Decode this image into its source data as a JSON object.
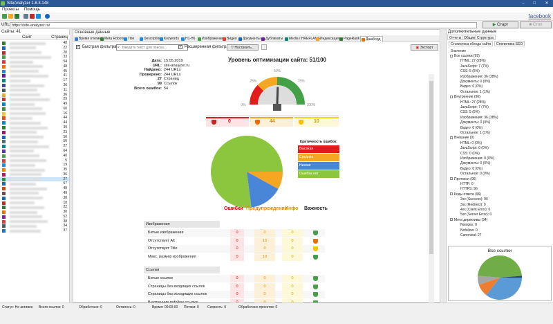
{
  "window": {
    "title": "SiteAnalyzer 1.8.3.148",
    "minimize": "–",
    "maximize": "□",
    "close": "✕"
  },
  "menu": {
    "items": [
      "Проекты",
      "Помощь"
    ]
  },
  "toolbar": {
    "facebook_link": "facebook"
  },
  "url_bar": {
    "label": "URL:",
    "value": "https://site-analyzer.ru/",
    "start_label": "Старт",
    "stop_label": "Стоп"
  },
  "sites_panel": {
    "title": "Сайты: 41",
    "col_site": "Сайт",
    "col_pages": "Страниц",
    "rows": [
      {
        "color": "#2e7d32",
        "pages": "48"
      },
      {
        "color": "#1565c0",
        "pages": "22"
      },
      {
        "color": "#c62828",
        "pages": "20"
      },
      {
        "color": "#43a047",
        "pages": "33"
      },
      {
        "color": "#e53935",
        "pages": "54"
      },
      {
        "color": "#ef6c00",
        "pages": "48"
      },
      {
        "color": "#1e88e5",
        "pages": "45"
      },
      {
        "color": "#6a1b9a",
        "pages": "41"
      },
      {
        "color": "#00897b",
        "pages": "17"
      },
      {
        "color": "#3949ab",
        "pages": "36"
      },
      {
        "color": "#455a64",
        "pages": "11"
      },
      {
        "color": "#f9a825",
        "pages": "36"
      },
      {
        "color": "#d32f2f",
        "pages": "29"
      },
      {
        "color": "#1976d2",
        "pages": "49"
      },
      {
        "color": "#388e3c",
        "pages": "60"
      },
      {
        "color": "#fbc02d",
        "pages": "16"
      },
      {
        "color": "#e64a19",
        "pages": "44"
      },
      {
        "color": "#0288d1",
        "pages": "44"
      },
      {
        "color": "#2e7d32",
        "pages": "39"
      },
      {
        "color": "#ad1457",
        "pages": "23"
      },
      {
        "color": "#1565c0",
        "pages": "50"
      },
      {
        "color": "#546e7a",
        "pages": "50"
      },
      {
        "color": "#00838f",
        "pages": "27"
      },
      {
        "color": "#5e35b1",
        "pages": "64"
      },
      {
        "color": "#43a047",
        "pages": "40"
      },
      {
        "color": "#e53935",
        "pages": "5"
      },
      {
        "color": "#1e88e5",
        "pages": "19"
      },
      {
        "color": "#f57c00",
        "pages": "35"
      },
      {
        "color": "#c2185b",
        "pages": "36"
      },
      {
        "color": "#388e3c",
        "pages": "27"
      },
      {
        "color": "#0277bd",
        "pages": "57"
      },
      {
        "color": "#d84315",
        "pages": "48"
      },
      {
        "color": "#6d4c41",
        "pages": "49"
      },
      {
        "color": "#1565c0",
        "pages": "38"
      },
      {
        "color": "#c62828",
        "pages": "18"
      },
      {
        "color": "#2e7d32",
        "pages": "22"
      },
      {
        "color": "#ef6c00",
        "pages": "30"
      },
      {
        "color": "#7b1fa2",
        "pages": "52"
      },
      {
        "color": "#e53935",
        "pages": "38"
      },
      {
        "color": "#455a64",
        "pages": "34"
      },
      {
        "color": "#1976d2",
        "pages": "37"
      }
    ],
    "selected_index": 29
  },
  "main": {
    "title": "Основные данные",
    "tabs": [
      "Время отклика",
      "Meta Robots",
      "Title",
      "Description",
      "Keywords",
      "H1-H6",
      "Изображения",
      "Видео",
      "Документы",
      "Дубликаты",
      "Media / HREFLANG",
      "Индексация",
      "PageRank",
      "Дашборд"
    ],
    "tab_colors": [
      "#3a7bd5",
      "#2e7d32",
      "#1e88e5",
      "#1e88e5",
      "#1e88e5",
      "#1e88e5",
      "#43a047",
      "#e53935",
      "#1565c0",
      "#6a1b9a",
      "#00897b",
      "#f9a825",
      "#2e7d32",
      "#ef6c00"
    ],
    "active_tab": 13,
    "filter": {
      "quick_label": "Быстрая фильтрация:",
      "quick_placeholder": "Введите текст для поиска...",
      "extended_label": "Расширенная фильтрация:",
      "configure_label": "Настроить...",
      "export_label": "Экспорт"
    },
    "dashboard": {
      "info": [
        {
          "k": "Дата:",
          "v": "15.05.2019"
        },
        {
          "k": "URL:",
          "v": "site-analyzer.ru"
        },
        {
          "k": "Найдено:",
          "v": "244 URLs"
        },
        {
          "k": "Проверено:",
          "v": "244 URLs"
        },
        {
          "k": "27",
          "v": "Страниц"
        },
        {
          "k": "99",
          "v": "Ссылок"
        },
        {
          "k": "Всего ошибок:",
          "v": "54"
        }
      ],
      "score_title": "Уровень оптимизации сайта: 51/100",
      "score": 51,
      "gauge_labels": [
        "0%",
        "25%",
        "50%",
        "75%",
        "100%"
      ],
      "counts": {
        "errors": "0",
        "warnings": "44",
        "info": "10"
      },
      "legend_title": "Критичность ошибок:",
      "legend": [
        {
          "label": "Высокая",
          "color": "#e21b1b"
        },
        {
          "label": "Средняя",
          "color": "#f5a623"
        },
        {
          "label": "Низкая",
          "color": "#4a86d8"
        },
        {
          "label": "Ошибок нет",
          "color": "#8cc63f"
        }
      ],
      "chart_data": {
        "type": "pie",
        "categories": [
          "Высокая",
          "Средняя",
          "Низкая",
          "Ошибок нет"
        ],
        "values": [
          0,
          8,
          15,
          77
        ],
        "colors": [
          "#e21b1b",
          "#f5a623",
          "#4a86d8",
          "#8cc63f"
        ]
      },
      "table_headers": {
        "errors": "Ошибки",
        "warnings": "Предупреждения",
        "info": "Инфо",
        "importance": "Важность"
      },
      "groups": [
        {
          "title": "Изображения",
          "rows": [
            {
              "name": "Битые изображения",
              "e": "0",
              "w": "0",
              "i": "0",
              "sev": "green"
            },
            {
              "name": "Отсутствует Alt",
              "e": "0",
              "w": "13",
              "i": "0",
              "sev": "orange"
            },
            {
              "name": "Отсутствует Title",
              "e": "0",
              "w": "0",
              "i": "0",
              "sev": "yellow"
            },
            {
              "name": "Макс. размер изображения",
              "e": "0",
              "w": "10",
              "i": "0",
              "sev": "green"
            }
          ]
        },
        {
          "title": "Ссылки",
          "rows": [
            {
              "name": "Битые ссылки",
              "e": "0",
              "w": "0",
              "i": "0",
              "sev": "green"
            },
            {
              "name": "Страницы без входящих ссылок",
              "e": "0",
              "w": "0",
              "i": "0",
              "sev": "green"
            },
            {
              "name": "Страницы без исходящих ссылок",
              "e": "0",
              "w": "0",
              "i": "0",
              "sev": "green"
            },
            {
              "name": "Внутренние nofollow ссылки",
              "e": "0",
              "w": "0",
              "i": "0",
              "sev": "green"
            }
          ]
        }
      ]
    }
  },
  "right_panel": {
    "title": "Дополнительные данные",
    "tabs": [
      "Отчеты",
      "Общие",
      "Структура"
    ],
    "subtabs": [
      "Статистика обхода сайта",
      "Статистика SEO"
    ],
    "values_header": "Значение",
    "tree": [
      {
        "t": "Все ссылки (99)",
        "l": 0
      },
      {
        "t": "HTML: 27 (28%)",
        "l": 1
      },
      {
        "t": "JavaScript: 7 (7%)",
        "l": 1
      },
      {
        "t": "CSS: 5 (5%)",
        "l": 1
      },
      {
        "t": "Изображения: 36 (38%)",
        "l": 1
      },
      {
        "t": "Документы: 0 (0%)",
        "l": 1
      },
      {
        "t": "Видео: 0 (0%)",
        "l": 1
      },
      {
        "t": "Остальное: 1 (1%)",
        "l": 1
      },
      {
        "t": "Внутренние (96)",
        "l": 0
      },
      {
        "t": "HTML: 27 (28%)",
        "l": 1
      },
      {
        "t": "JavaScript: 7 (7%)",
        "l": 1
      },
      {
        "t": "CSS: 5 (5%)",
        "l": 1
      },
      {
        "t": "Изображения: 36 (38%)",
        "l": 1
      },
      {
        "t": "Документы: 0 (0%)",
        "l": 1
      },
      {
        "t": "Видео: 0 (0%)",
        "l": 1
      },
      {
        "t": "Остальное: 1 (1%)",
        "l": 1
      },
      {
        "t": "Внешние (0)",
        "l": 0
      },
      {
        "t": "HTML: 0 (0%)",
        "l": 1
      },
      {
        "t": "JavaScript: 0 (0%)",
        "l": 1
      },
      {
        "t": "CSS: 0 (0%)",
        "l": 1
      },
      {
        "t": "Изображения: 0 (0%)",
        "l": 1
      },
      {
        "t": "Документы: 0 (0%)",
        "l": 1
      },
      {
        "t": "Видео: 0 (0%)",
        "l": 1
      },
      {
        "t": "Остальное: 0 (0%)",
        "l": 1
      },
      {
        "t": "Протокол (96)",
        "l": 0
      },
      {
        "t": "HTTP: 0",
        "l": 1
      },
      {
        "t": "HTTPS: 96",
        "l": 1
      },
      {
        "t": "Коды ответа (96)",
        "l": 0
      },
      {
        "t": "2xx (Success): 96",
        "l": 1
      },
      {
        "t": "3xx (Redirect): 0",
        "l": 1
      },
      {
        "t": "4xx (Client Error): 0",
        "l": 1
      },
      {
        "t": "5xx (Server Error): 0",
        "l": 1
      },
      {
        "t": "Мета директивы (34)",
        "l": 0
      },
      {
        "t": "Noindex: 0",
        "l": 1
      },
      {
        "t": "Nofollow: 0",
        "l": 1
      },
      {
        "t": "Canonical: 27",
        "l": 1
      }
    ],
    "mini_chart": {
      "title": "Все ссылки",
      "chart_data": {
        "type": "pie",
        "categories": [
          "HTML",
          "JavaScript",
          "CSS",
          "Изображения",
          "Документы",
          "Видео",
          "Остальное"
        ],
        "values": [
          27,
          7,
          5,
          36,
          0,
          0,
          1
        ],
        "colors": [
          "#5b9bd5",
          "#ed7d31",
          "#a5a5a5",
          "#70ad47",
          "#ffc000",
          "#4472c4",
          "#264478"
        ]
      }
    }
  },
  "status_bar": {
    "items": [
      "Статус: Не активен",
      "Всего ссылок: 0",
      "Обработано: 0",
      "Осталось: 0",
      "Время: 00:00:00",
      "Потоки: 0",
      "Скорость: 0",
      "Обработано проектов: 0"
    ]
  }
}
